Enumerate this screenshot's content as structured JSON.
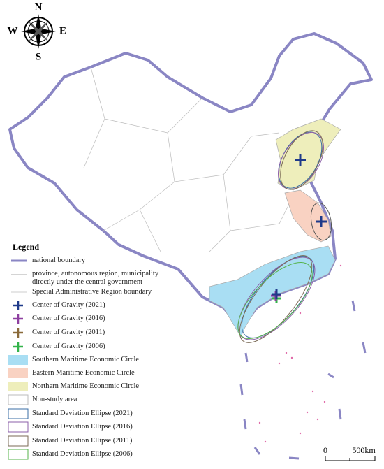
{
  "compass": {
    "north": "N",
    "south": "S",
    "east": "E",
    "west": "W"
  },
  "legend": {
    "title": "Legend",
    "items": [
      "national boundary",
      "province, autonomous region, municipality directly under the central government",
      "Special Administrative Region boundary",
      "Center of Gravity (2021)",
      "Center of Gravity (2016)",
      "Center of Gravity (2011)",
      "Center of Gravity (2006)",
      "Southern Maritime Economic Circle",
      "Eastern Maritime Economic Circle",
      "Northern Maritime Economic Circle",
      "Non-study area",
      "Standard Deviation Ellipse (2021)",
      "Standard Deviation Ellipse (2016)",
      "Standard Deviation Ellipse (2011)",
      "Standard Deviation Ellipse (2006)"
    ]
  },
  "scale_bar": {
    "start": "0",
    "end": "500km"
  }
}
